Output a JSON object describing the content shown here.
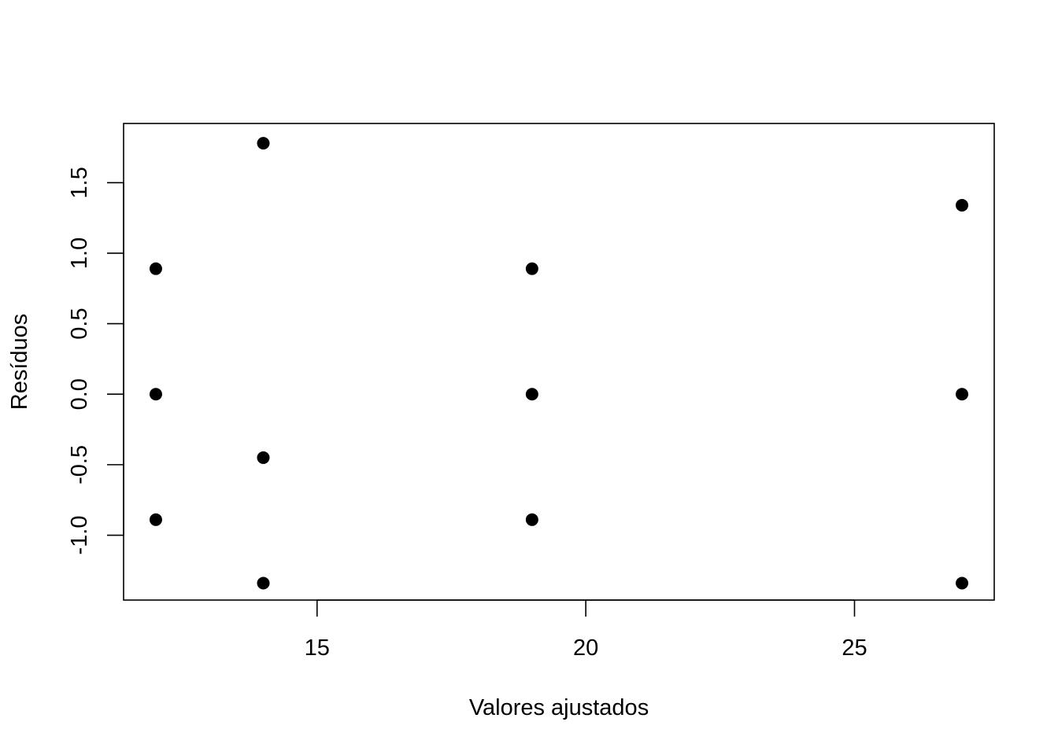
{
  "chart_data": {
    "type": "scatter",
    "title": "",
    "xlabel": "Valores ajustados",
    "ylabel": "Resíduos",
    "xlim": [
      11.4,
      27.6
    ],
    "ylim": [
      -1.46,
      1.92
    ],
    "x_ticks": [
      15,
      20,
      25
    ],
    "x_tick_labels": [
      "15",
      "20",
      "25"
    ],
    "y_ticks": [
      -1.0,
      -0.5,
      0.0,
      0.5,
      1.0,
      1.5
    ],
    "y_tick_labels": [
      "-1.0",
      "-0.5",
      "0.0",
      "0.5",
      "1.0",
      "1.5"
    ],
    "grid": false,
    "legend": "none",
    "point_color": "#000000",
    "points": [
      {
        "x": 12,
        "y": 0.89
      },
      {
        "x": 12,
        "y": 0.0
      },
      {
        "x": 12,
        "y": -0.89
      },
      {
        "x": 14,
        "y": 1.78
      },
      {
        "x": 14,
        "y": -0.45
      },
      {
        "x": 14,
        "y": -1.34
      },
      {
        "x": 19,
        "y": 0.89
      },
      {
        "x": 19,
        "y": 0.0
      },
      {
        "x": 19,
        "y": -0.89
      },
      {
        "x": 27,
        "y": 1.34
      },
      {
        "x": 27,
        "y": 0.0
      },
      {
        "x": 27,
        "y": -1.34
      }
    ]
  }
}
